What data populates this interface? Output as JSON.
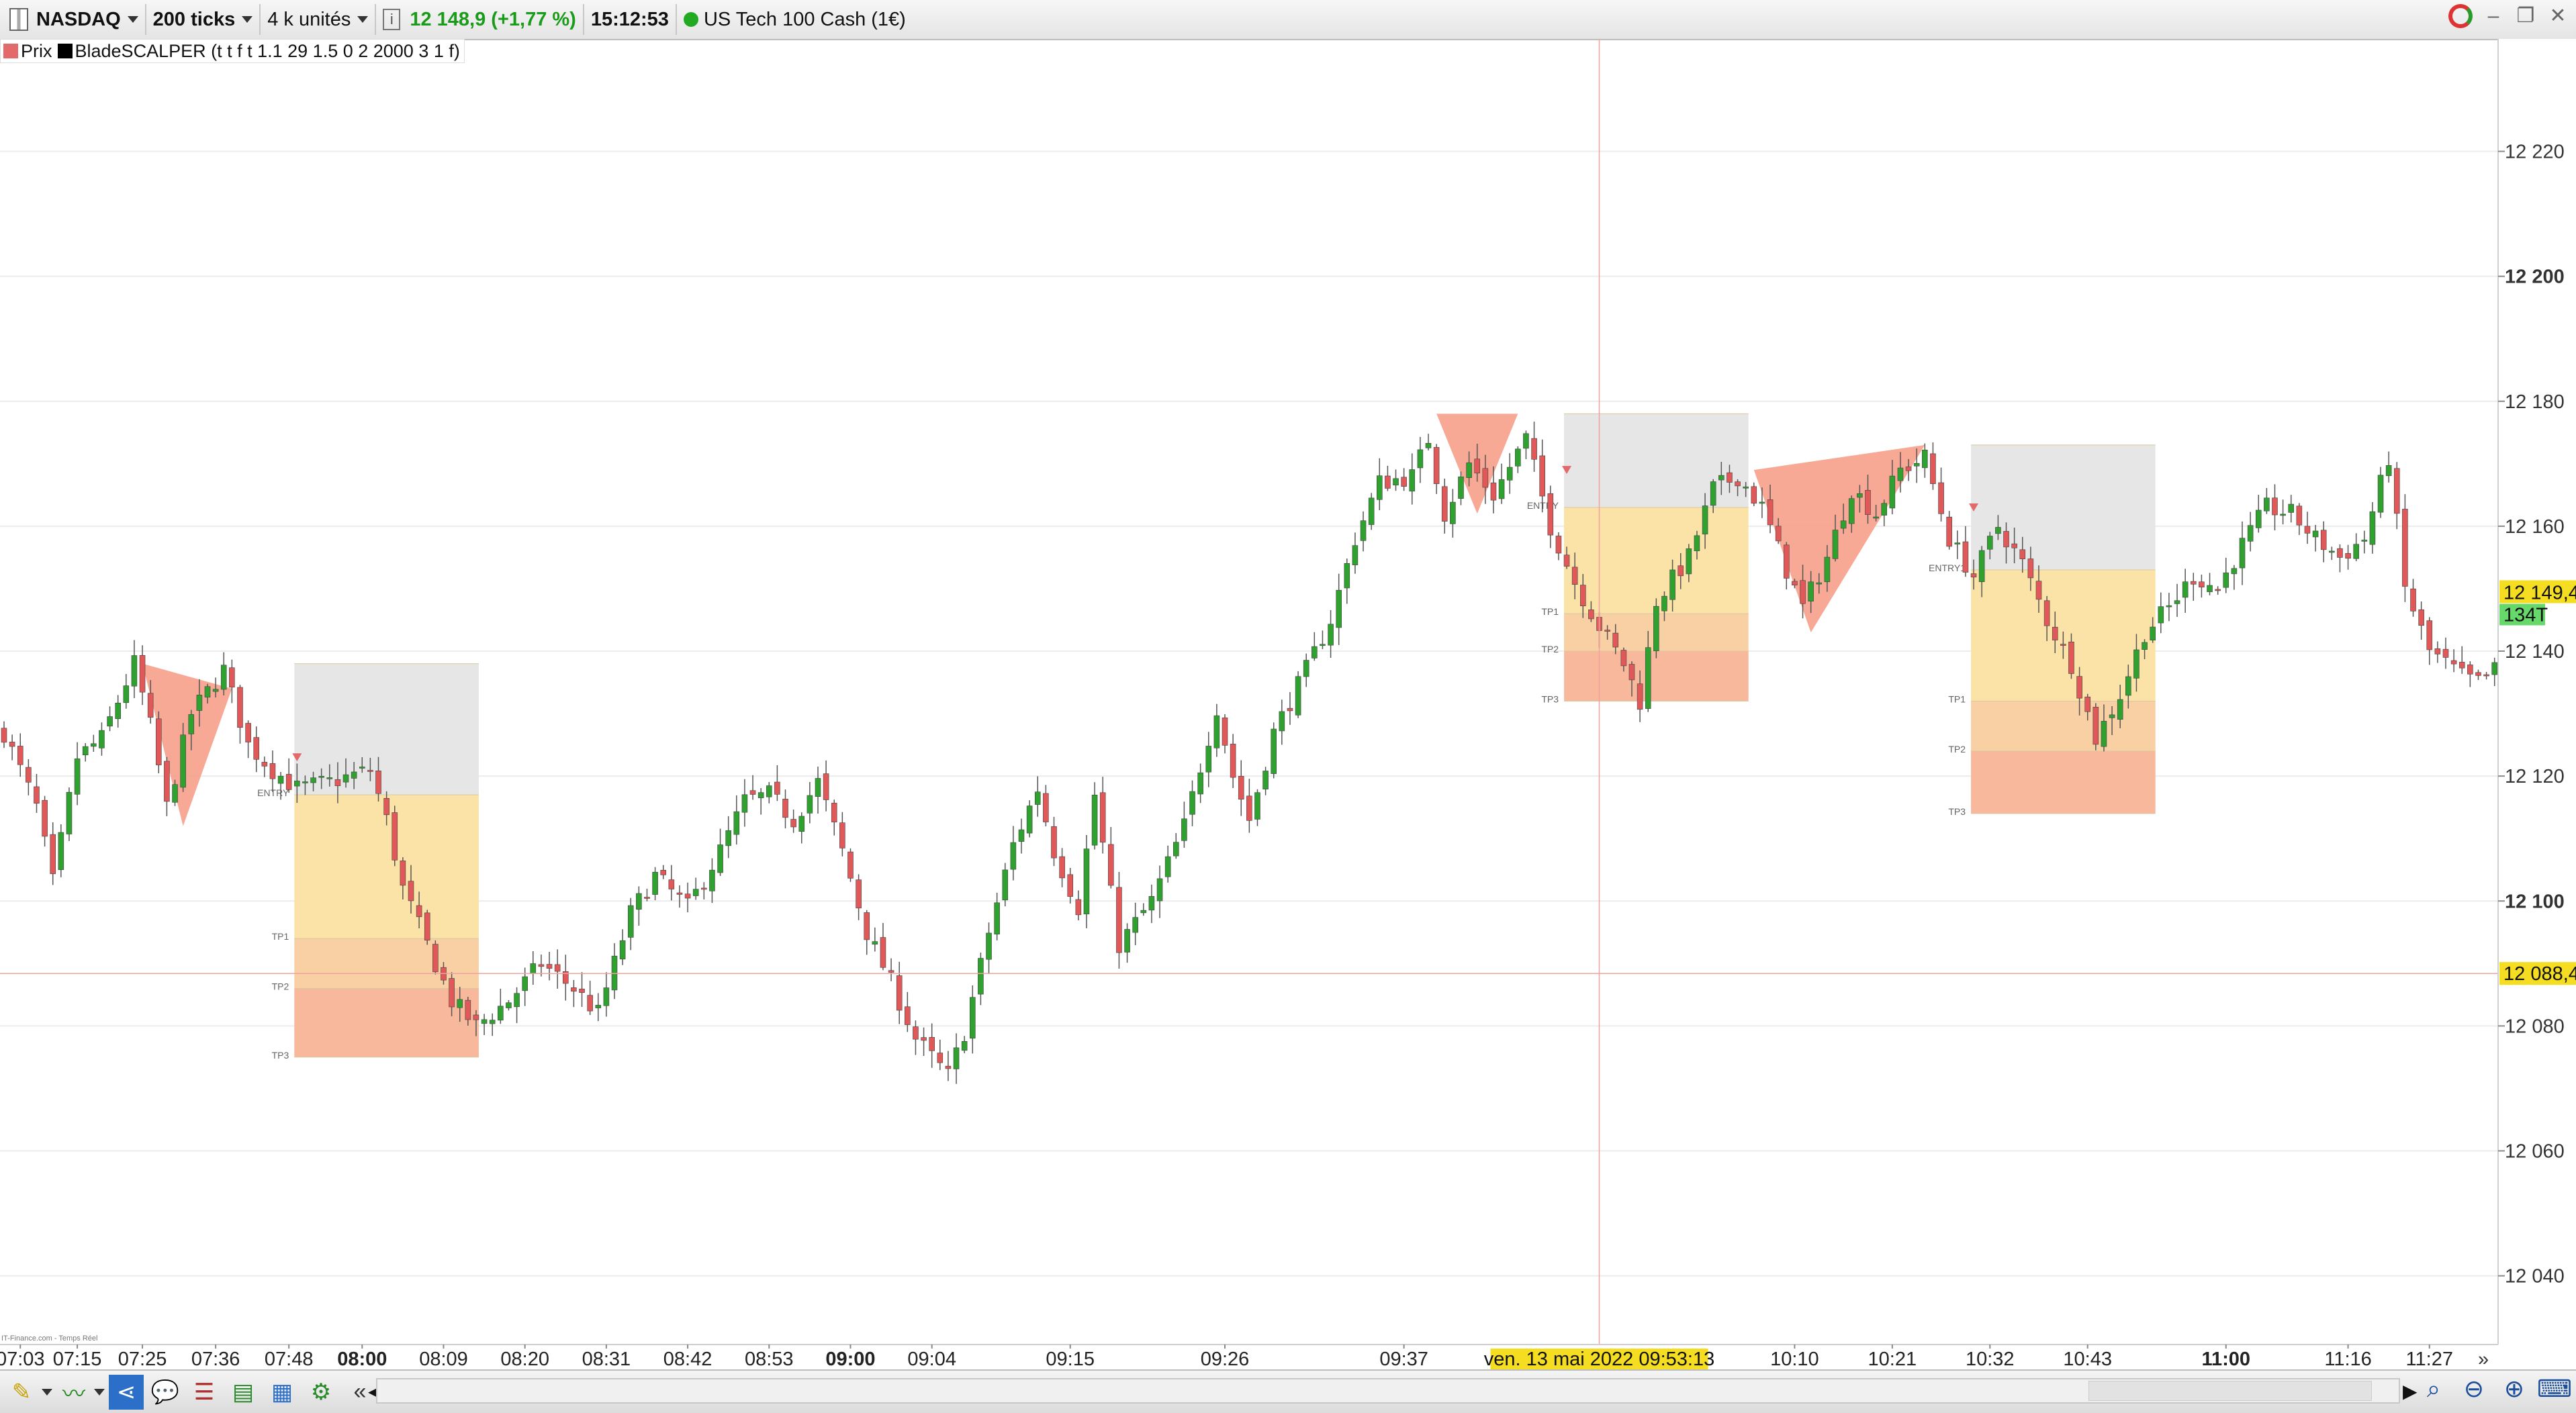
{
  "toolbar": {
    "market": "NASDAQ",
    "timeframe": "200 ticks",
    "units": "4 k unités",
    "price_change": "12 148,9 (+1,77 %)",
    "clock": "15:12:53",
    "instrument": "US Tech 100 Cash (1€)"
  },
  "legend": {
    "price_label": "Prix",
    "indicator_label": "BladeSCALPER (t t f t 1.1 29 1.5 0 2 2000 3 1 f)",
    "price_color": "#e36a6a",
    "indicator_color": "#000000"
  },
  "footer": {
    "source": "IT-Finance.com - Temps Réel"
  },
  "chart_data": {
    "type": "candlestick",
    "instrument": "US Tech 100 Cash (1€)",
    "bar_interval": "200 ticks",
    "ylim": [
      12029,
      12238
    ],
    "y_ticks": [
      12040,
      12060,
      12080,
      12100,
      12120,
      12140,
      12160,
      12180,
      12200,
      12220
    ],
    "y_tick_labels": [
      "12 040",
      "12 060",
      "12 080",
      "12 100",
      "12 120",
      "12 140",
      "12 160",
      "12 180",
      "12 200",
      "12 220"
    ],
    "bold_y_ticks": [
      12100,
      12200
    ],
    "x_tick_labels": [
      "07:03",
      "07:15",
      "07:25",
      "07:36",
      "07:48",
      "08:00",
      "08:09",
      "08:20",
      "08:31",
      "08:42",
      "08:53",
      "09:00",
      "09:04",
      "09:15",
      "09:26",
      "09:37",
      "10:10",
      "10:21",
      "10:32",
      "10:43",
      "11:00",
      "11:16",
      "11:27"
    ],
    "bold_x_ticks": [
      "08:00",
      "09:00",
      "11:00"
    ],
    "x_tick_pos": [
      2,
      9,
      17,
      26,
      35,
      44,
      54,
      64,
      74,
      84,
      94,
      104,
      114,
      131,
      150,
      172,
      220,
      232,
      244,
      256,
      273,
      288,
      298
    ],
    "grid": "horizontal",
    "n_bars": 315,
    "anchors": [
      [
        0,
        12127
      ],
      [
        4,
        12115
      ],
      [
        6,
        12103
      ],
      [
        9,
        12123
      ],
      [
        12,
        12126
      ],
      [
        16,
        12138
      ],
      [
        18,
        12128
      ],
      [
        20,
        12115
      ],
      [
        23,
        12130
      ],
      [
        27,
        12137
      ],
      [
        30,
        12125
      ],
      [
        33,
        12121
      ],
      [
        36,
        12118
      ],
      [
        40,
        12119
      ],
      [
        45,
        12121
      ],
      [
        47,
        12113
      ],
      [
        49,
        12102
      ],
      [
        52,
        12093
      ],
      [
        55,
        12084
      ],
      [
        58,
        12080
      ],
      [
        62,
        12084
      ],
      [
        66,
        12090
      ],
      [
        70,
        12086
      ],
      [
        73,
        12082
      ],
      [
        77,
        12098
      ],
      [
        80,
        12104
      ],
      [
        84,
        12099
      ],
      [
        88,
        12108
      ],
      [
        91,
        12116
      ],
      [
        94,
        12117
      ],
      [
        97,
        12113
      ],
      [
        100,
        12119
      ],
      [
        103,
        12108
      ],
      [
        106,
        12095
      ],
      [
        109,
        12087
      ],
      [
        112,
        12078
      ],
      [
        116,
        12072
      ],
      [
        118,
        12079
      ],
      [
        121,
        12095
      ],
      [
        124,
        12109
      ],
      [
        127,
        12118
      ],
      [
        129,
        12108
      ],
      [
        132,
        12099
      ],
      [
        134,
        12117
      ],
      [
        137,
        12093
      ],
      [
        141,
        12100
      ],
      [
        145,
        12112
      ],
      [
        149,
        12131
      ],
      [
        151,
        12120
      ],
      [
        153,
        12113
      ],
      [
        156,
        12127
      ],
      [
        160,
        12137
      ],
      [
        163,
        12145
      ],
      [
        166,
        12158
      ],
      [
        169,
        12167
      ],
      [
        173,
        12168
      ],
      [
        175,
        12174
      ],
      [
        177,
        12162
      ],
      [
        180,
        12170
      ],
      [
        183,
        12165
      ],
      [
        187,
        12174
      ],
      [
        190,
        12160
      ],
      [
        193,
        12151
      ],
      [
        196,
        12144
      ],
      [
        199,
        12138
      ],
      [
        201,
        12132
      ],
      [
        203,
        12148
      ],
      [
        207,
        12155
      ],
      [
        210,
        12166
      ],
      [
        213,
        12168
      ],
      [
        216,
        12163
      ],
      [
        219,
        12153
      ],
      [
        221,
        12147
      ],
      [
        224,
        12155
      ],
      [
        227,
        12166
      ],
      [
        230,
        12162
      ],
      [
        233,
        12169
      ],
      [
        236,
        12171
      ],
      [
        239,
        12158
      ],
      [
        242,
        12152
      ],
      [
        245,
        12160
      ],
      [
        248,
        12154
      ],
      [
        251,
        12145
      ],
      [
        254,
        12138
      ],
      [
        257,
        12126
      ],
      [
        260,
        12133
      ],
      [
        263,
        12143
      ],
      [
        266,
        12147
      ],
      [
        269,
        12152
      ],
      [
        272,
        12150
      ],
      [
        275,
        12157
      ],
      [
        278,
        12163
      ],
      [
        281,
        12162
      ],
      [
        284,
        12158
      ],
      [
        287,
        12155
      ],
      [
        290,
        12158
      ],
      [
        293,
        12171
      ],
      [
        295,
        12150
      ],
      [
        298,
        12140
      ],
      [
        302,
        12136
      ],
      [
        304,
        12135
      ],
      [
        306,
        12137
      ]
    ],
    "crosshair": {
      "date_label": "ven. 13 mai 2022 09:53:13",
      "bar": 196,
      "price": 12088.4,
      "price_label": "12 088,4"
    },
    "last_price": {
      "value": 12149.4,
      "label": "12 149,4",
      "tick_counter": "134T"
    },
    "triangles": [
      {
        "bars": [
          17,
          28,
          22
        ],
        "prices": [
          12138,
          12134,
          12112
        ],
        "color": "#f6a08a"
      },
      {
        "bars": [
          176,
          186,
          181
        ],
        "prices": [
          12178,
          12178,
          12162
        ],
        "color": "#f6a08a"
      },
      {
        "bars": [
          215,
          236,
          222
        ],
        "prices": [
          12169,
          12173,
          12143
        ],
        "color": "#f6a08a"
      }
    ],
    "setups": [
      {
        "bar_start": 36,
        "bar_end": 58,
        "top": 12138,
        "entry": 12117,
        "tp1": 12094,
        "tp2": 12086,
        "tp3": 12075,
        "labels": [
          "ENTRY",
          "TP1",
          "TP2",
          "TP3"
        ],
        "marker_bar": 36,
        "marker_price": 12123
      },
      {
        "bar_start": 192,
        "bar_end": 214,
        "top": 12178,
        "entry": 12163,
        "tp1": 12146,
        "tp2": 12140,
        "tp3": 12132,
        "labels": [
          "ENTRY",
          "TP1",
          "TP2",
          "TP3"
        ],
        "marker_bar": 192,
        "marker_price": 12169
      },
      {
        "bar_start": 242,
        "bar_end": 264,
        "top": 12173,
        "entry": 12153,
        "tp1": 12132,
        "tp2": 12124,
        "tp3": 12114,
        "labels": [
          "ENTRY1",
          "TP1",
          "TP2",
          "TP3"
        ],
        "marker_bar": 242,
        "marker_price": 12163
      }
    ],
    "colors": {
      "up": "#2ea12e",
      "down": "#e05858",
      "wick": "#555555",
      "risk_zone": "#e6e6e6",
      "entry_zone": "#fbe3a7",
      "tp1_zone": "#f9cfa4",
      "tp2_zone": "#f8b89c",
      "tp3_zone": "#f7a98f",
      "crosshair": "#f2a0a0",
      "last_price_bg": "#f5dd22",
      "counter_bg": "#67d86a"
    }
  }
}
